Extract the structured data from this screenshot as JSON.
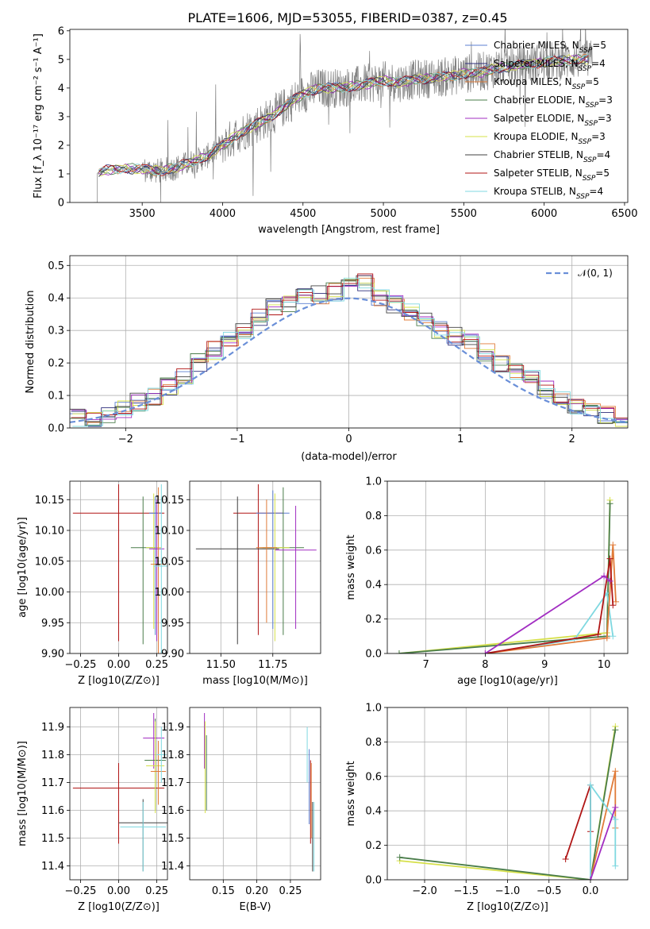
{
  "figure": {
    "title": "PLATE=1606, MJD=53055, FIBERID=0387, z=0.45"
  },
  "models": [
    {
      "name": "Chabrier MILES, N_SSP=5",
      "color": "#5b7fd0"
    },
    {
      "name": "Salpeter MILES, N_SSP=4",
      "color": "#2c2c7a"
    },
    {
      "name": "Kroupa MILES, N_SSP=5",
      "color": "#e07b39"
    },
    {
      "name": "Chabrier ELODIE, N_SSP=3",
      "color": "#4a7d4a"
    },
    {
      "name": "Salpeter ELODIE, N_SSP=3",
      "color": "#a22ec2"
    },
    {
      "name": "Kroupa ELODIE, N_SSP=3",
      "color": "#d6e04a"
    },
    {
      "name": "Chabrier STELIB, N_SSP=4",
      "color": "#404040"
    },
    {
      "name": "Salpeter STELIB, N_SSP=5",
      "color": "#b01515"
    },
    {
      "name": "Kroupa STELIB, N_SSP=4",
      "color": "#7fd8e0"
    }
  ],
  "chart_data": [
    {
      "id": "spectrum",
      "type": "line",
      "title": "PLATE=1606, MJD=53055, FIBERID=0387, z=0.45",
      "xlabel": "wavelength [Angstrom, rest frame]",
      "ylabel": "Flux [f_λ 10⁻¹⁷ erg cm⁻² s⁻¹ A⁻¹]",
      "xlim": [
        3050,
        6520
      ],
      "ylim": [
        0,
        6.05
      ],
      "xticks": [
        3500,
        4000,
        4500,
        5000,
        5500,
        6000,
        6500
      ],
      "yticks": [
        0,
        1,
        2,
        3,
        4,
        5,
        6
      ],
      "continuum_x": [
        3220,
        3260,
        3300,
        3400,
        3500,
        3600,
        3700,
        3800,
        3900,
        4000,
        4100,
        4200,
        4300,
        4400,
        4500,
        4600,
        4700,
        4800,
        4900,
        5000,
        5100,
        5200,
        5300,
        5400,
        5500,
        5600,
        5700,
        5800,
        5900,
        6000,
        6100,
        6200,
        6300
      ],
      "continuum_y": [
        1.0,
        1.1,
        1.15,
        1.2,
        1.15,
        1.1,
        1.2,
        1.4,
        1.6,
        2.0,
        2.4,
        2.7,
        3.0,
        3.4,
        3.8,
        4.0,
        4.0,
        4.05,
        4.15,
        4.25,
        4.2,
        4.3,
        4.35,
        4.4,
        4.5,
        4.55,
        4.7,
        4.75,
        4.85,
        4.9,
        4.95,
        5.0,
        5.0
      ],
      "grid": false,
      "legend_position": "right"
    },
    {
      "id": "residuals",
      "type": "line",
      "xlabel": "(data-model)/error",
      "ylabel": "Normed distribution",
      "xlim": [
        -2.5,
        2.5
      ],
      "ylim": [
        0,
        0.53
      ],
      "xticks": [
        -2,
        -1,
        0,
        1,
        2
      ],
      "yticks": [
        0.0,
        0.1,
        0.2,
        0.3,
        0.4,
        0.5
      ],
      "grid": true,
      "legend_position": "upper right",
      "gaussian_label": "𝒩(0, 1)",
      "histogram_profile": [
        0.028,
        0.02,
        0.04,
        0.06,
        0.08,
        0.1,
        0.13,
        0.16,
        0.2,
        0.24,
        0.27,
        0.3,
        0.34,
        0.37,
        0.38,
        0.4,
        0.41,
        0.42,
        0.44,
        0.45,
        0.4,
        0.38,
        0.36,
        0.34,
        0.3,
        0.28,
        0.26,
        0.23,
        0.2,
        0.18,
        0.15,
        0.12,
        0.09,
        0.07,
        0.05,
        0.04,
        0.03
      ]
    },
    {
      "id": "age-vs-Z",
      "type": "scatter",
      "xlabel": "Z [log10(Z/Z⊙)]",
      "ylabel": "age  [log10(age/yr)]",
      "xlim": [
        -0.32,
        0.32
      ],
      "ylim": [
        9.9,
        10.18
      ],
      "xticks": [
        -0.25,
        0.0,
        0.25
      ],
      "xticklabels": [
        "−0.25",
        "0.00",
        "0.25"
      ],
      "yticks": [
        9.9,
        9.95,
        10.0,
        10.05,
        10.1,
        10.15
      ],
      "grid": true,
      "points": [
        {
          "x": 0.0,
          "y": 10.128,
          "xerr": 0.3,
          "ylo": 9.92,
          "yhi": 10.175,
          "model": 7
        },
        {
          "x": 0.16,
          "y": 10.072,
          "xerr": 0.08,
          "ylo": 9.915,
          "yhi": 10.155,
          "model": 3
        },
        {
          "x": 0.23,
          "y": 10.072,
          "xerr": 0.05,
          "ylo": 9.94,
          "yhi": 10.16,
          "model": 5
        },
        {
          "x": 0.24,
          "y": 10.128,
          "xerr": 0.04,
          "ylo": 9.93,
          "yhi": 10.155,
          "model": 0
        },
        {
          "x": 0.25,
          "y": 10.07,
          "xerr": 0.05,
          "ylo": 9.92,
          "yhi": 10.15,
          "model": 4
        },
        {
          "x": 0.26,
          "y": 10.045,
          "xerr": 0.05,
          "ylo": 9.9,
          "yhi": 10.17,
          "model": 2
        },
        {
          "x": 0.28,
          "y": 10.042,
          "xerr": 0.05,
          "ylo": 9.9,
          "yhi": 10.175,
          "model": 8
        }
      ]
    },
    {
      "id": "age-vs-mass",
      "type": "scatter",
      "xlabel": "mass [log10(M/M⊙)]",
      "ylabel": "",
      "xlim": [
        11.35,
        11.98
      ],
      "ylim": [
        9.9,
        10.18
      ],
      "xticks": [
        11.5,
        11.75
      ],
      "xticklabels": [
        "11.50",
        "11.75"
      ],
      "yticks": [
        9.9,
        9.95,
        10.0,
        10.05,
        10.1,
        10.15
      ],
      "grid": true,
      "points": [
        {
          "x": 11.68,
          "y": 10.128,
          "xerr": 0.12,
          "ylo": 9.93,
          "yhi": 10.175,
          "model": 7
        },
        {
          "x": 11.58,
          "y": 10.07,
          "xerr": 0.2,
          "ylo": 9.915,
          "yhi": 10.155,
          "model": 6
        },
        {
          "x": 11.75,
          "y": 10.128,
          "xerr": 0.08,
          "ylo": 9.94,
          "yhi": 10.165,
          "model": 0
        },
        {
          "x": 11.8,
          "y": 10.072,
          "xerr": 0.1,
          "ylo": 9.93,
          "yhi": 10.17,
          "model": 3
        },
        {
          "x": 11.86,
          "y": 10.068,
          "xerr": 0.1,
          "ylo": 9.94,
          "yhi": 10.14,
          "model": 4
        },
        {
          "x": 11.76,
          "y": 10.072,
          "xerr": 0.07,
          "ylo": 9.92,
          "yhi": 10.16,
          "model": 5
        },
        {
          "x": 11.72,
          "y": 10.072,
          "xerr": 0.05,
          "ylo": 9.95,
          "yhi": 10.15,
          "model": 2
        }
      ]
    },
    {
      "id": "massweight-vs-age",
      "type": "line",
      "xlabel": "age  [log10(age/yr)]",
      "ylabel": "mass weight",
      "xlim": [
        6.35,
        10.4
      ],
      "ylim": [
        0,
        1.0
      ],
      "xticks": [
        7,
        8,
        9,
        10
      ],
      "yticks": [
        0.0,
        0.2,
        0.4,
        0.6,
        0.8,
        1.0
      ],
      "grid": true,
      "series": [
        {
          "model": 5,
          "x": [
            6.55,
            10.05,
            10.1
          ],
          "y": [
            0.0,
            0.12,
            0.89
          ]
        },
        {
          "model": 3,
          "x": [
            6.55,
            10.05,
            10.1
          ],
          "y": [
            0.0,
            0.1,
            0.87
          ]
        },
        {
          "model": 8,
          "x": [
            8.0,
            9.5,
            10.05,
            10.15
          ],
          "y": [
            0.0,
            0.08,
            0.35,
            0.1
          ]
        },
        {
          "model": 2,
          "x": [
            8.0,
            10.05,
            10.15,
            10.2
          ],
          "y": [
            0.0,
            0.09,
            0.63,
            0.3
          ]
        },
        {
          "model": 7,
          "x": [
            8.0,
            9.9,
            10.1,
            10.15
          ],
          "y": [
            0.0,
            0.11,
            0.55,
            0.28
          ]
        },
        {
          "model": 4,
          "x": [
            8.0,
            10.0,
            10.1
          ],
          "y": [
            0.0,
            0.45,
            0.42
          ]
        }
      ]
    },
    {
      "id": "mass-vs-Z",
      "type": "scatter",
      "xlabel": "Z [log10(Z/Z⊙)]",
      "ylabel": "mass [log10(M/M⊙)]",
      "xlim": [
        -0.32,
        0.32
      ],
      "ylim": [
        11.35,
        11.97
      ],
      "xticks": [
        -0.25,
        0.0,
        0.25
      ],
      "xticklabels": [
        "−0.25",
        "0.00",
        "0.25"
      ],
      "yticks": [
        11.4,
        11.5,
        11.6,
        11.7,
        11.8,
        11.9
      ],
      "grid": true,
      "points": [
        {
          "x": 0.0,
          "y": 11.68,
          "xerr": 0.3,
          "ylo": 11.48,
          "yhi": 11.77,
          "model": 7
        },
        {
          "x": 0.16,
          "y": 11.555,
          "xerr": 0.16,
          "ylo": 11.38,
          "yhi": 11.64,
          "model": 6
        },
        {
          "x": 0.16,
          "y": 11.54,
          "xerr": 0.15,
          "ylo": 11.38,
          "yhi": 11.63,
          "model": 8
        },
        {
          "x": 0.23,
          "y": 11.86,
          "xerr": 0.07,
          "ylo": 11.75,
          "yhi": 11.95,
          "model": 4
        },
        {
          "x": 0.24,
          "y": 11.78,
          "xerr": 0.07,
          "ylo": 11.6,
          "yhi": 11.93,
          "model": 3
        },
        {
          "x": 0.24,
          "y": 11.76,
          "xerr": 0.06,
          "ylo": 11.59,
          "yhi": 11.92,
          "model": 5
        },
        {
          "x": 0.26,
          "y": 11.74,
          "xerr": 0.05,
          "ylo": 11.62,
          "yhi": 11.85,
          "model": 2
        },
        {
          "x": 0.28,
          "y": 11.8,
          "xerr": 0.03,
          "ylo": 11.7,
          "yhi": 11.9,
          "model": 8
        }
      ]
    },
    {
      "id": "mass-vs-EBV",
      "type": "scatter",
      "xlabel": "E(B-V)",
      "ylabel": "",
      "xlim": [
        0.1,
        0.295
      ],
      "ylim": [
        11.35,
        11.97
      ],
      "xticks": [
        0.15,
        0.2,
        0.25
      ],
      "xticklabels": [
        "0.15",
        "0.20",
        "0.25"
      ],
      "yticks": [
        11.4,
        11.5,
        11.6,
        11.7,
        11.8,
        11.9
      ],
      "grid": true,
      "points": [
        {
          "x": 0.122,
          "y": 11.86,
          "xerr": 0,
          "ylo": 11.75,
          "yhi": 11.95,
          "model": 4
        },
        {
          "x": 0.123,
          "y": 11.74,
          "xerr": 0,
          "ylo": 11.59,
          "yhi": 11.92,
          "model": 5
        },
        {
          "x": 0.125,
          "y": 11.78,
          "xerr": 0,
          "ylo": 11.6,
          "yhi": 11.87,
          "model": 3
        },
        {
          "x": 0.275,
          "y": 11.8,
          "xerr": 0,
          "ylo": 11.7,
          "yhi": 11.9,
          "model": 8
        },
        {
          "x": 0.278,
          "y": 11.7,
          "xerr": 0,
          "ylo": 11.55,
          "yhi": 11.82,
          "model": 0
        },
        {
          "x": 0.28,
          "y": 11.66,
          "xerr": 0,
          "ylo": 11.48,
          "yhi": 11.78,
          "model": 7
        },
        {
          "x": 0.281,
          "y": 11.68,
          "xerr": 0,
          "ylo": 11.5,
          "yhi": 11.77,
          "model": 2
        },
        {
          "x": 0.283,
          "y": 11.55,
          "xerr": 0,
          "ylo": 11.38,
          "yhi": 11.63,
          "model": 6
        },
        {
          "x": 0.285,
          "y": 11.54,
          "xerr": 0,
          "ylo": 11.38,
          "yhi": 11.63,
          "model": 8
        }
      ]
    },
    {
      "id": "massweight-vs-Z",
      "type": "line",
      "xlabel": "Z [log10(Z/Z⊙)]",
      "ylabel": "mass weight",
      "xlim": [
        -2.45,
        0.45
      ],
      "ylim": [
        0,
        1.0
      ],
      "xticks": [
        -2.0,
        -1.5,
        -1.0,
        -0.5,
        0.0
      ],
      "xticklabels": [
        "−2.0",
        "−1.5",
        "−1.0",
        "−0.5",
        "0.0"
      ],
      "yticks": [
        0.0,
        0.2,
        0.4,
        0.6,
        0.8,
        1.0
      ],
      "grid": true,
      "series": [
        {
          "model": 5,
          "x": [
            -2.3,
            0.0,
            0.3
          ],
          "y": [
            0.11,
            0.0,
            0.89
          ]
        },
        {
          "model": 3,
          "x": [
            -2.3,
            0.0,
            0.3
          ],
          "y": [
            0.13,
            0.0,
            0.87
          ]
        },
        {
          "model": 7,
          "x": [
            -0.3,
            0.0,
            0.0
          ],
          "y": [
            0.12,
            0.55,
            0.28
          ]
        },
        {
          "model": 2,
          "x": [
            0.0,
            0.3,
            0.3
          ],
          "y": [
            0.0,
            0.63,
            0.3
          ]
        },
        {
          "model": 8,
          "x": [
            0.0,
            0.0,
            0.3,
            0.3
          ],
          "y": [
            0.0,
            0.55,
            0.35,
            0.08
          ]
        },
        {
          "model": 4,
          "x": [
            0.0,
            0.3
          ],
          "y": [
            0.0,
            0.42
          ]
        }
      ]
    }
  ]
}
